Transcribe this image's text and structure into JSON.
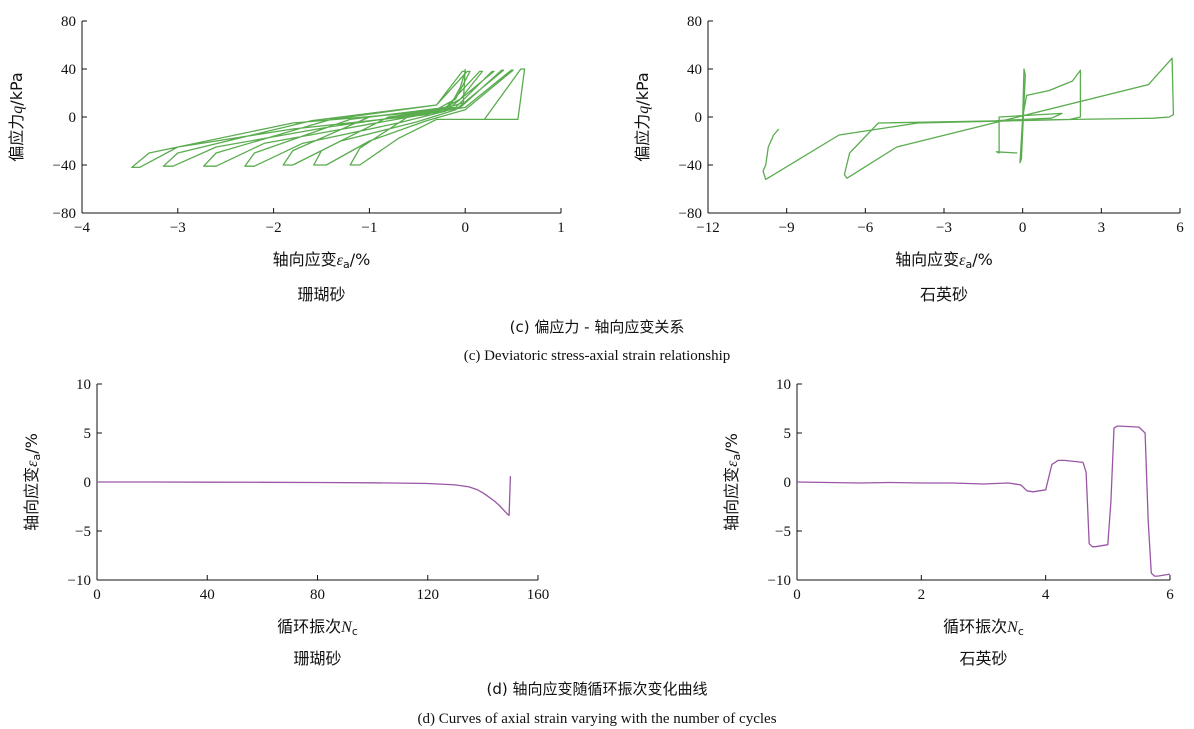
{
  "captions": {
    "c_cn": "(c) 偏应力 - 轴向应变关系",
    "c_en": "(c) Deviatoric stress-axial strain relationship",
    "d_cn": "(d) 轴向应变随循环振次变化曲线",
    "d_en": "(d) Curves of axial strain varying with the number of cycles"
  },
  "colors": {
    "c_series": "#5aac4f",
    "d_series": "#9a56a6"
  },
  "chart_data": [
    {
      "id": "c-coral",
      "type": "line",
      "subtitle": "珊瑚砂",
      "xlabel_main": "轴向应变",
      "xlabel_sym": "ε",
      "xlabel_sub": "a",
      "xlabel_unit": "/%",
      "ylabel_main": "偏应力",
      "ylabel_sym": "q",
      "ylabel_unit": "/kPa",
      "xlim": [
        -4,
        1
      ],
      "ylim": [
        -80,
        80
      ],
      "xticks": [
        -4,
        -3,
        -2,
        -1,
        0,
        1
      ],
      "yticks": [
        -80,
        -40,
        0,
        40,
        80
      ],
      "xtick_labels": [
        "−4",
        "−3",
        "−2",
        "−1",
        "0",
        "1"
      ],
      "ytick_labels": [
        "−80",
        "−40",
        "0",
        "40",
        "80"
      ],
      "series": [
        {
          "x": [
            0.0,
            -0.02,
            -0.3,
            -1.8,
            -3.3,
            -3.48,
            -3.4,
            -3.0,
            -1.8,
            -0.4,
            -0.15,
            -0.05,
            0.0,
            -0.03,
            -0.3,
            -1.6,
            -3.0,
            -3.15,
            -3.05,
            -2.6,
            -1.4,
            -0.35,
            -0.1,
            0.05,
            0.02,
            -0.3,
            -1.4,
            -2.6,
            -2.73,
            -2.6,
            -2.1,
            -1.0,
            -0.3,
            -0.05,
            0.18,
            0.15,
            -0.2,
            -1.2,
            -2.2,
            -2.3,
            -2.2,
            -1.7,
            -0.7,
            -0.2,
            0.3,
            0.28,
            -0.1,
            -1.0,
            -1.8,
            -1.9,
            -1.8,
            -1.3,
            -0.5,
            -0.1,
            0.4,
            0.38,
            -0.05,
            -0.8,
            -1.5,
            -1.58,
            -1.45,
            -1.0,
            -0.4,
            0.0,
            0.5,
            0.48,
            0.0,
            -0.6,
            -1.1,
            -1.2,
            -1.1,
            -0.7,
            -0.3,
            0.55,
            0.62,
            0.58,
            0.2
          ],
          "y": [
            40,
            12,
            5,
            -5,
            -30,
            -42,
            -42,
            -25,
            -10,
            2,
            10,
            25,
            38,
            38,
            10,
            -3,
            -30,
            -41,
            -41,
            -25,
            -8,
            4,
            15,
            38,
            38,
            10,
            -2,
            -30,
            -41,
            -41,
            -22,
            -6,
            4,
            15,
            38,
            38,
            8,
            -2,
            -30,
            -41,
            -41,
            -22,
            -5,
            5,
            38,
            38,
            8,
            0,
            -28,
            -40,
            -40,
            -20,
            -4,
            6,
            39,
            39,
            8,
            0,
            -28,
            -40,
            -40,
            -20,
            -3,
            6,
            39,
            39,
            8,
            0,
            -26,
            -40,
            -40,
            -18,
            -2,
            -2,
            40,
            40,
            -2
          ]
        }
      ]
    },
    {
      "id": "c-quartz",
      "type": "line",
      "subtitle": "石英砂",
      "xlabel_main": "轴向应变",
      "xlabel_sym": "ε",
      "xlabel_sub": "a",
      "xlabel_unit": "/%",
      "ylabel_main": "偏应力",
      "ylabel_sym": "q",
      "ylabel_unit": "/kPa",
      "xlim": [
        -12,
        6
      ],
      "ylim": [
        -80,
        80
      ],
      "xticks": [
        -12,
        -9,
        -6,
        -3,
        0,
        3,
        6
      ],
      "yticks": [
        -80,
        -40,
        0,
        40,
        80
      ],
      "xtick_labels": [
        "−12",
        "−9",
        "−6",
        "−3",
        "0",
        "3",
        "6"
      ],
      "ytick_labels": [
        "−80",
        "−40",
        "0",
        "40",
        "80"
      ],
      "series": [
        {
          "x": [
            0.0,
            0.05,
            0.1,
            -0.05,
            -0.1,
            0.0,
            0.15,
            1.0,
            1.9,
            2.2,
            2.2,
            1.8,
            -0.5,
            -5.5,
            -6.6,
            -6.8,
            -6.7,
            -4.8,
            4.8,
            5.7,
            5.75,
            5.6,
            5.0,
            2.0,
            -4.0,
            -7.0,
            -9.8,
            -9.9,
            -9.8,
            -9.7,
            -9.5,
            -9.3
          ],
          "y": [
            0,
            40,
            35,
            -35,
            -38,
            0,
            18,
            22,
            30,
            39,
            0,
            -2,
            -3,
            -5,
            -30,
            -48,
            -51,
            -25,
            27,
            49,
            2,
            0,
            -1,
            -2,
            -5,
            -15,
            -52,
            -45,
            -40,
            -25,
            -15,
            -10
          ]
        },
        {
          "x": [
            -1.0,
            1.1,
            1.5,
            -0.9,
            -0.9,
            -1.0,
            -0.2
          ],
          "y": [
            -3,
            -1,
            3,
            0,
            -30,
            -29,
            -30
          ]
        }
      ]
    },
    {
      "id": "d-coral",
      "type": "line",
      "subtitle": "珊瑚砂",
      "xlabel_main": "循环振次",
      "xlabel_sym": "N",
      "xlabel_sub": "c",
      "xlabel_unit": "",
      "ylabel_main": "轴向应变",
      "ylabel_sym": "ε",
      "ylabel_sub": "a",
      "ylabel_unit": "/%",
      "xlim": [
        0,
        160
      ],
      "ylim": [
        -10,
        10
      ],
      "xticks": [
        0,
        40,
        80,
        120,
        160
      ],
      "yticks": [
        -10,
        -5,
        0,
        5,
        10
      ],
      "xtick_labels": [
        "0",
        "40",
        "80",
        "120",
        "160"
      ],
      "ytick_labels": [
        "−10",
        "−5",
        "0",
        "5",
        "10"
      ],
      "series": [
        {
          "x": [
            0,
            20,
            40,
            60,
            80,
            100,
            120,
            130,
            135,
            138,
            140,
            142,
            144,
            146,
            147,
            148,
            149,
            149.5,
            150
          ],
          "y": [
            0,
            0,
            -0.02,
            -0.03,
            -0.05,
            -0.08,
            -0.15,
            -0.3,
            -0.5,
            -0.8,
            -1.1,
            -1.5,
            -1.9,
            -2.4,
            -2.7,
            -3.0,
            -3.3,
            -3.4,
            0.6
          ]
        }
      ]
    },
    {
      "id": "d-quartz",
      "type": "line",
      "subtitle": "石英砂",
      "xlabel_main": "循环振次",
      "xlabel_sym": "N",
      "xlabel_sub": "c",
      "xlabel_unit": "",
      "ylabel_main": "轴向应变",
      "ylabel_sym": "ε",
      "ylabel_sub": "a",
      "ylabel_unit": "/%",
      "xlim": [
        0,
        6
      ],
      "ylim": [
        -10,
        10
      ],
      "xticks": [
        0,
        2,
        4,
        6
      ],
      "yticks": [
        -10,
        -5,
        0,
        5,
        10
      ],
      "xtick_labels": [
        "0",
        "2",
        "4",
        "6"
      ],
      "ytick_labels": [
        "−10",
        "−5",
        "0",
        "5",
        "10"
      ],
      "series": [
        {
          "x": [
            0,
            0.5,
            1.0,
            1.5,
            2.0,
            2.5,
            3.0,
            3.4,
            3.6,
            3.7,
            3.8,
            4.0,
            4.1,
            4.2,
            4.3,
            4.6,
            4.65,
            4.7,
            4.75,
            4.8,
            5.0,
            5.05,
            5.1,
            5.15,
            5.2,
            5.5,
            5.6,
            5.65,
            5.7,
            5.75,
            5.8,
            6.0
          ],
          "y": [
            0,
            -0.05,
            -0.1,
            -0.05,
            -0.1,
            -0.1,
            -0.2,
            -0.1,
            -0.3,
            -0.9,
            -1.0,
            -0.8,
            1.8,
            2.2,
            2.2,
            2.0,
            1.0,
            -6.3,
            -6.6,
            -6.6,
            -6.4,
            -2.0,
            5.5,
            5.7,
            5.7,
            5.6,
            5.0,
            -4.0,
            -9.3,
            -9.6,
            -9.6,
            -9.4
          ]
        }
      ]
    }
  ]
}
